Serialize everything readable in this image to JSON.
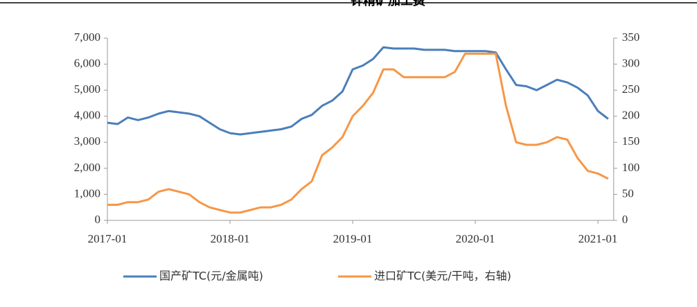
{
  "chart_data": {
    "type": "line",
    "title": "锌精矿加工费",
    "x": [
      "2017-01",
      "2017-02",
      "2017-03",
      "2017-04",
      "2017-05",
      "2017-06",
      "2017-07",
      "2017-08",
      "2017-09",
      "2017-10",
      "2017-11",
      "2017-12",
      "2018-01",
      "2018-02",
      "2018-03",
      "2018-04",
      "2018-05",
      "2018-06",
      "2018-07",
      "2018-08",
      "2018-09",
      "2018-10",
      "2018-11",
      "2018-12",
      "2019-01",
      "2019-02",
      "2019-03",
      "2019-04",
      "2019-05",
      "2019-06",
      "2019-07",
      "2019-08",
      "2019-09",
      "2019-10",
      "2019-11",
      "2019-12",
      "2020-01",
      "2020-02",
      "2020-03",
      "2020-04",
      "2020-05",
      "2020-06",
      "2020-07",
      "2020-08",
      "2020-09",
      "2020-10",
      "2020-11",
      "2020-12",
      "2021-01",
      "2021-02"
    ],
    "xlim": [
      "2017-01",
      "2021-02"
    ],
    "xticks": [
      "2017-01",
      "2018-01",
      "2019-01",
      "2020-01",
      "2021-01"
    ],
    "series": [
      {
        "name": "国产矿TC(元/金属吨)",
        "color": "#4a7ebb",
        "values": [
          3750,
          3700,
          3950,
          3850,
          3950,
          4100,
          4200,
          4150,
          4100,
          4000,
          3750,
          3500,
          3350,
          3300,
          3350,
          3400,
          3450,
          3500,
          3600,
          3900,
          4050,
          4400,
          4600,
          4950,
          5800,
          5950,
          6200,
          6650,
          6600,
          6600,
          6600,
          6550,
          6550,
          6550,
          6500,
          6500,
          6500,
          6500,
          6450,
          5800,
          5200,
          5150,
          5000,
          5200,
          5400,
          5300,
          5100,
          4800,
          4200,
          3900
        ]
      },
      {
        "name": "进口矿TC(美元/干吨，右轴)",
        "color": "#f79646",
        "axis": "y2",
        "values": [
          30,
          30,
          35,
          35,
          40,
          55,
          60,
          55,
          50,
          35,
          25,
          20,
          15,
          15,
          20,
          25,
          25,
          30,
          40,
          60,
          75,
          125,
          140,
          160,
          200,
          220,
          245,
          290,
          290,
          275,
          275,
          275,
          275,
          275,
          285,
          320,
          320,
          320,
          320,
          220,
          150,
          145,
          145,
          150,
          160,
          155,
          120,
          95,
          90,
          80
        ]
      }
    ],
    "ylim": [
      0,
      7000
    ],
    "yticks": [
      0,
      {
        "value": 1000,
        "label": "1,000"
      },
      {
        "value": 2000,
        "label": "2,000"
      },
      {
        "value": 3000,
        "label": "3,000"
      },
      {
        "value": 4000,
        "label": "4,000"
      },
      {
        "value": 5000,
        "label": "5,000"
      },
      {
        "value": 6000,
        "label": "6,000"
      },
      {
        "value": 7000,
        "label": "7,000"
      }
    ],
    "y2lim": [
      0,
      350
    ],
    "y2ticks": [
      0,
      50,
      100,
      150,
      200,
      250,
      300,
      350
    ],
    "legend": "bottom"
  }
}
